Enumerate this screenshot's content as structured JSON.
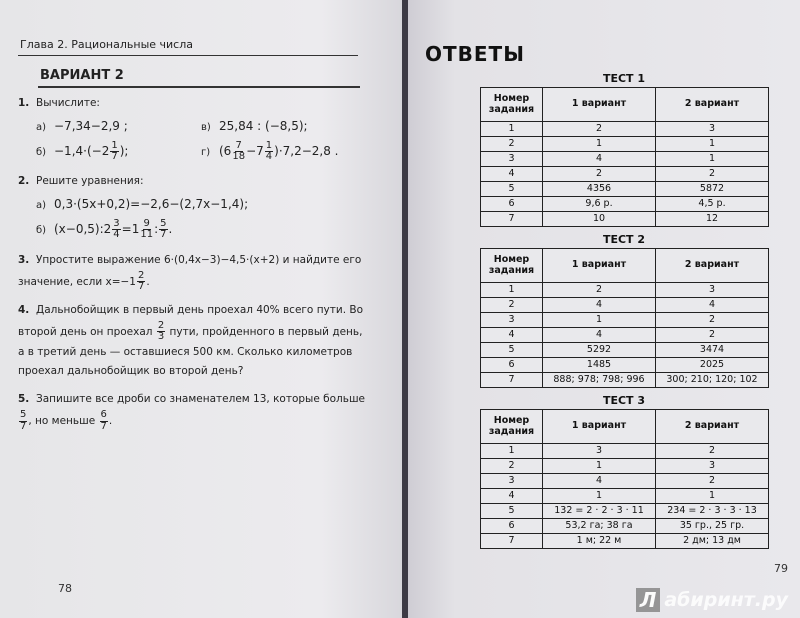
{
  "left_page": {
    "chapter_header": "Глава 2. Рациональные числа",
    "variant_title": "ВАРИАНТ 2",
    "page_number": "78",
    "tasks": [
      {
        "num": "1.",
        "text": "Вычислите:",
        "items": [
          {
            "label": "а)",
            "parts": [
              "−7,34−2,9 ;"
            ]
          },
          {
            "label": "в)",
            "parts": [
              "25,84 : (−8,5);"
            ]
          },
          {
            "label": "б)",
            "parts": [
              "−1,4·(−2",
              {
                "n": "1",
                "d": "7"
              },
              ");"
            ]
          },
          {
            "label": "г)",
            "parts": [
              "(6",
              {
                "n": "7",
                "d": "18"
              },
              "−7",
              {
                "n": "1",
                "d": "4"
              },
              ")·7,2−2,8 ."
            ]
          }
        ]
      },
      {
        "num": "2.",
        "text": "Решите уравнения:",
        "items": [
          {
            "label": "а)",
            "parts": [
              "0,3·(5x+0,2)=−2,6−(2,7x−1,4);"
            ]
          },
          {
            "label": "б)",
            "parts": [
              "(x−0,5):2",
              {
                "n": "3",
                "d": "4"
              },
              "=1",
              {
                "n": "9",
                "d": "11"
              },
              ":",
              {
                "n": "5",
                "d": "7"
              },
              "."
            ]
          }
        ]
      },
      {
        "num": "3.",
        "parts": [
          "Упростите выражение 6·(0,4x−3)−4,5·(x+2) и найдите его значение, если x=−1",
          {
            "n": "2",
            "d": "7"
          },
          "."
        ]
      },
      {
        "num": "4.",
        "parts": [
          "Дальнобойщик в первый день проехал 40% всего пути. Во второй день он проехал ",
          {
            "n": "2",
            "d": "3"
          },
          " пути, пройденного в первый день, а в третий день — оставшиеся 500 км. Сколько километров проехал дальнобойщик во второй день?"
        ]
      },
      {
        "num": "5.",
        "parts": [
          "Запишите все дроби со знаменателем 13, которые больше ",
          {
            "n": "5",
            "d": "7"
          },
          ", но меньше ",
          {
            "n": "6",
            "d": "7"
          },
          "."
        ]
      }
    ]
  },
  "right_page": {
    "title": "ОТВЕТЫ",
    "page_number": "79",
    "watermark": "Лабиринт.ру",
    "tests": [
      {
        "title": "ТЕСТ 1",
        "headers": [
          "Номер задания",
          "1 вариант",
          "2 вариант"
        ],
        "rows": [
          [
            "1",
            "2",
            "3"
          ],
          [
            "2",
            "1",
            "1"
          ],
          [
            "3",
            "4",
            "1"
          ],
          [
            "4",
            "2",
            "2"
          ],
          [
            "5",
            "4356",
            "5872"
          ],
          [
            "6",
            "9,6 р.",
            "4,5 р."
          ],
          [
            "7",
            "10",
            "12"
          ]
        ]
      },
      {
        "title": "ТЕСТ 2",
        "headers": [
          "Номер задания",
          "1 вариант",
          "2 вариант"
        ],
        "rows": [
          [
            "1",
            "2",
            "3"
          ],
          [
            "2",
            "4",
            "4"
          ],
          [
            "3",
            "1",
            "2"
          ],
          [
            "4",
            "4",
            "2"
          ],
          [
            "5",
            "5292",
            "3474"
          ],
          [
            "6",
            "1485",
            "2025"
          ],
          [
            "7",
            "888; 978; 798; 996",
            "300; 210; 120; 102"
          ]
        ]
      },
      {
        "title": "ТЕСТ 3",
        "headers": [
          "Номер задания",
          "1 вариант",
          "2 вариант"
        ],
        "rows": [
          [
            "1",
            "3",
            "2"
          ],
          [
            "2",
            "1",
            "3"
          ],
          [
            "3",
            "4",
            "2"
          ],
          [
            "4",
            "1",
            "1"
          ],
          [
            "5",
            "132 = 2 · 2 · 3 · 11",
            "234 = 2 · 3 · 3 · 13"
          ],
          [
            "6",
            "53,2 га; 38 га",
            "35 гр., 25 гр."
          ],
          [
            "7",
            "1 м; 22 м",
            "2 дм; 13 дм"
          ]
        ]
      }
    ]
  }
}
